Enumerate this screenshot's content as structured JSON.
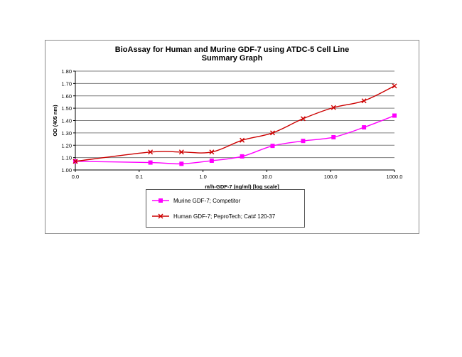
{
  "chart_data": {
    "type": "line",
    "title": "BioAssay for Human and Murine GDF-7 using ATDC-5 Cell Line",
    "subtitle": "Summary Graph",
    "xlabel": "m/h-GDF-7 (ng/ml) [log scale]",
    "ylabel": "OD (405 nm)",
    "x_scale": "log",
    "x_tick_labels": [
      "0.0",
      "0.1",
      "1.0",
      "10.0",
      "100.0",
      "1000.0"
    ],
    "x_tick_values": [
      0.01,
      0.1,
      1,
      10,
      100,
      1000
    ],
    "y_tick_labels": [
      "1.00",
      "1.10",
      "1.20",
      "1.30",
      "1.40",
      "1.50",
      "1.60",
      "1.70",
      "1.80"
    ],
    "ylim": [
      1.0,
      1.8
    ],
    "grid": "horizontal",
    "legend_position": "bottom",
    "x": [
      0.01,
      0.15,
      0.46,
      1.37,
      4.1,
      12.3,
      37,
      111,
      333,
      1000
    ],
    "series": [
      {
        "name": "Murine GDF-7; Competitor",
        "color": "#ff00ff",
        "marker": "square",
        "values": [
          1.07,
          1.06,
          1.05,
          1.075,
          1.11,
          1.195,
          1.235,
          1.265,
          1.345,
          1.44
        ]
      },
      {
        "name": "Human GDF-7; PeproTech; Cat# 120-37",
        "color": "#cc0000",
        "marker": "x",
        "values": [
          1.07,
          1.145,
          1.145,
          1.145,
          1.24,
          1.3,
          1.415,
          1.505,
          1.56,
          1.68
        ]
      }
    ]
  }
}
